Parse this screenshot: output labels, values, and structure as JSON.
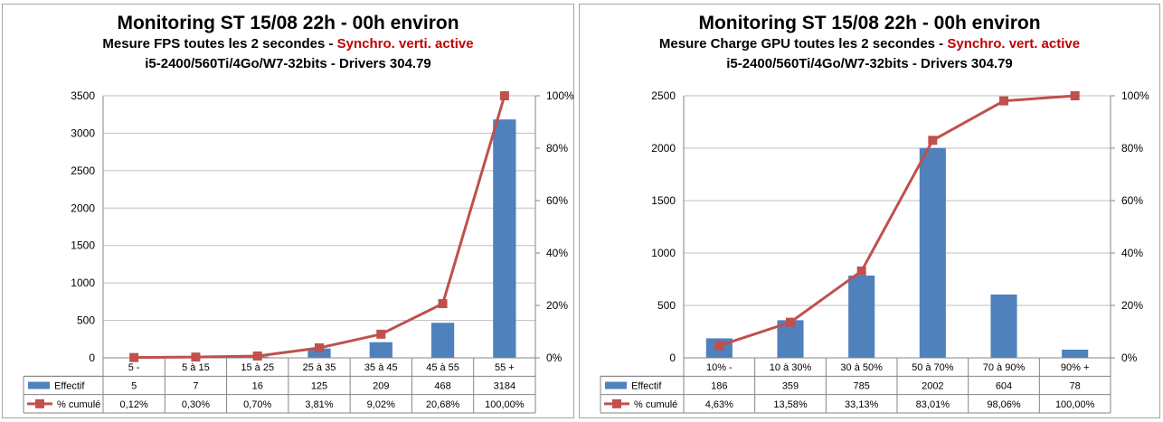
{
  "colors": {
    "bar": "#4f81bd",
    "line": "#c0504d",
    "grid": "#bfbfbf",
    "axis": "#868686",
    "subtitle_accent": "#c00000"
  },
  "charts": [
    {
      "title": "Monitoring ST 15/08 22h - 00h environ",
      "subtitle_prefix": "Mesure FPS toutes les 2 secondes - ",
      "subtitle_highlight": "Synchro. verti. active",
      "subtitle_line2": "i5-2400/560Ti/4Go/W7-32bits - Drivers 304.79",
      "legend_bar": "Effectif",
      "legend_line": "% cumulé"
    },
    {
      "title": "Monitoring ST 15/08 22h - 00h environ",
      "subtitle_prefix": "Mesure Charge GPU toutes les 2 secondes - ",
      "subtitle_highlight": "Synchro. vert. active",
      "subtitle_line2": "i5-2400/560Ti/4Go/W7-32bits - Drivers 304.79",
      "legend_bar": "Effectif",
      "legend_line": "% cumulé"
    }
  ],
  "chart_data": [
    {
      "type": "bar",
      "categories": [
        "5 -",
        "5 à 15",
        "15 à 25",
        "25 à 35",
        "35 à 45",
        "45 à 55",
        "55 +"
      ],
      "series": [
        {
          "name": "Effectif",
          "type": "bar",
          "axis": "left",
          "values": [
            5,
            7,
            16,
            125,
            209,
            468,
            3184
          ],
          "labels": [
            "5",
            "7",
            "16",
            "125",
            "209",
            "468",
            "3184"
          ]
        },
        {
          "name": "% cumulé",
          "type": "line",
          "axis": "right",
          "values": [
            0.12,
            0.3,
            0.7,
            3.81,
            9.02,
            20.68,
            100.0
          ],
          "labels": [
            "0,12%",
            "0,30%",
            "0,70%",
            "3,81%",
            "9,02%",
            "20,68%",
            "100,00%"
          ]
        }
      ],
      "ylim": [
        0,
        3500
      ],
      "y_ticks": [
        0,
        500,
        1000,
        1500,
        2000,
        2500,
        3000,
        3500
      ],
      "y2lim": [
        0,
        100
      ],
      "y2_ticks": [
        "0%",
        "20%",
        "40%",
        "60%",
        "80%",
        "100%"
      ],
      "grid": true,
      "legend": "data-table"
    },
    {
      "type": "bar",
      "categories": [
        "10% -",
        "10 à 30%",
        "30 à 50%",
        "50 à 70%",
        "70 à 90%",
        "90% +"
      ],
      "series": [
        {
          "name": "Effectif",
          "type": "bar",
          "axis": "left",
          "values": [
            186,
            359,
            785,
            2002,
            604,
            78
          ],
          "labels": [
            "186",
            "359",
            "785",
            "2002",
            "604",
            "78"
          ]
        },
        {
          "name": "% cumulé",
          "type": "line",
          "axis": "right",
          "values": [
            4.63,
            13.58,
            33.13,
            83.01,
            98.06,
            100.0
          ],
          "labels": [
            "4,63%",
            "13,58%",
            "33,13%",
            "83,01%",
            "98,06%",
            "100,00%"
          ]
        }
      ],
      "ylim": [
        0,
        2500
      ],
      "y_ticks": [
        0,
        500,
        1000,
        1500,
        2000,
        2500
      ],
      "y2lim": [
        0,
        100
      ],
      "y2_ticks": [
        "0%",
        "20%",
        "40%",
        "60%",
        "80%",
        "100%"
      ],
      "grid": true,
      "legend": "data-table"
    }
  ]
}
